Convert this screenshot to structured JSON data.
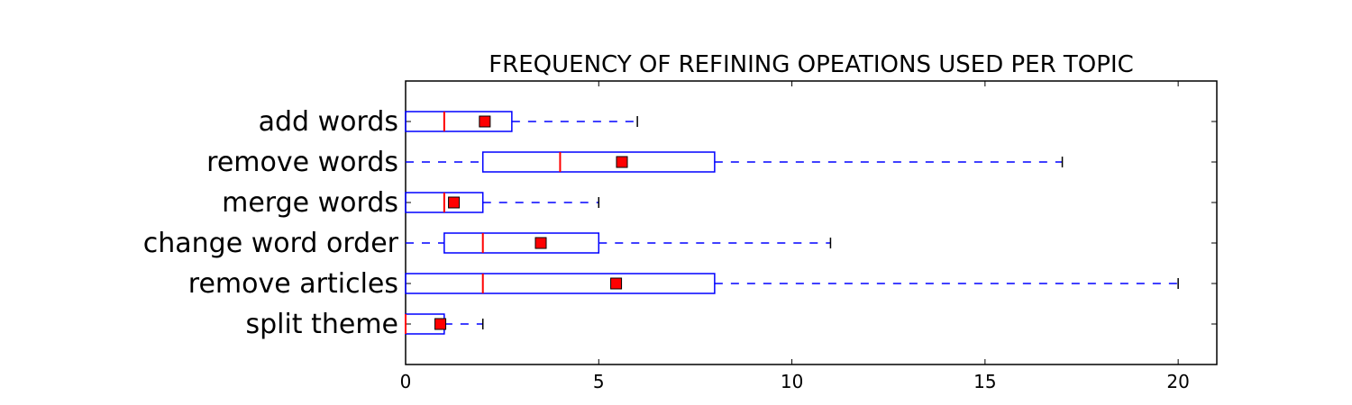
{
  "chart_data": {
    "type": "boxplot",
    "orientation": "horizontal",
    "title": "FREQUENCY OF REFINING OPEATIONS USED PER TOPIC",
    "xlabel": "",
    "ylabel": "",
    "xlim": [
      0,
      21
    ],
    "x_ticks": [
      0,
      5,
      10,
      15,
      20
    ],
    "x_tick_labels": [
      "0",
      "5",
      "10",
      "15",
      "20"
    ],
    "grid": false,
    "categories": [
      "add words",
      "remove words",
      "merge words",
      "change word order",
      "remove articles",
      "split theme"
    ],
    "boxes": [
      {
        "label": "add words",
        "whisker_low": 0,
        "q1": 0,
        "median": 1,
        "q3": 2.75,
        "whisker_high": 6,
        "mean": 2.05
      },
      {
        "label": "remove words",
        "whisker_low": 0,
        "q1": 2,
        "median": 4,
        "q3": 8,
        "whisker_high": 17,
        "mean": 5.6
      },
      {
        "label": "merge words",
        "whisker_low": 0,
        "q1": 0,
        "median": 1,
        "q3": 2,
        "whisker_high": 5,
        "mean": 1.25
      },
      {
        "label": "change word order",
        "whisker_low": 0,
        "q1": 1,
        "median": 2,
        "q3": 5,
        "whisker_high": 11,
        "mean": 3.5
      },
      {
        "label": "remove articles",
        "whisker_low": 0,
        "q1": 0,
        "median": 2,
        "q3": 8,
        "whisker_high": 20,
        "mean": 5.45
      },
      {
        "label": "split theme",
        "whisker_low": 0,
        "q1": 0,
        "median": 0,
        "q3": 1,
        "whisker_high": 2,
        "mean": 0.9
      }
    ],
    "colors": {
      "box": "#0000ff",
      "median": "#ff0000",
      "mean_marker": "#ff0000",
      "axis": "#000000"
    }
  }
}
